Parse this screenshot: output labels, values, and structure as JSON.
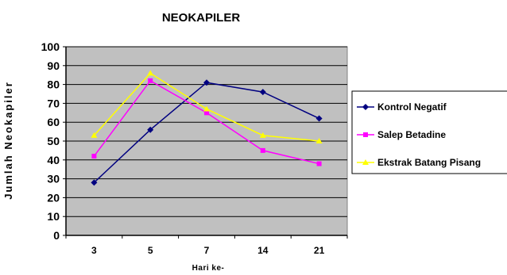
{
  "chart_data": {
    "type": "line",
    "title": "NEOKAPILER",
    "xlabel": "Hari ke-",
    "ylabel": "Jumlah Neokapiler",
    "categories": [
      "3",
      "5",
      "7",
      "14",
      "21"
    ],
    "ylim": [
      0,
      100
    ],
    "yticks": [
      0,
      10,
      20,
      30,
      40,
      50,
      60,
      70,
      80,
      90,
      100
    ],
    "grid": true,
    "plot_background": "#c0c0c0",
    "legend_position": "right",
    "series": [
      {
        "name": "Kontrol Negatif",
        "color": "#000080",
        "marker": "diamond",
        "values": [
          28,
          56,
          81,
          76,
          62
        ]
      },
      {
        "name": "Salep Betadine",
        "color": "#ff00ff",
        "marker": "square",
        "values": [
          42,
          82,
          65,
          45,
          38
        ]
      },
      {
        "name": "Ekstrak Batang Pisang",
        "color": "#ffff00",
        "marker": "triangle",
        "values": [
          53,
          86,
          67,
          53,
          50
        ]
      }
    ]
  }
}
